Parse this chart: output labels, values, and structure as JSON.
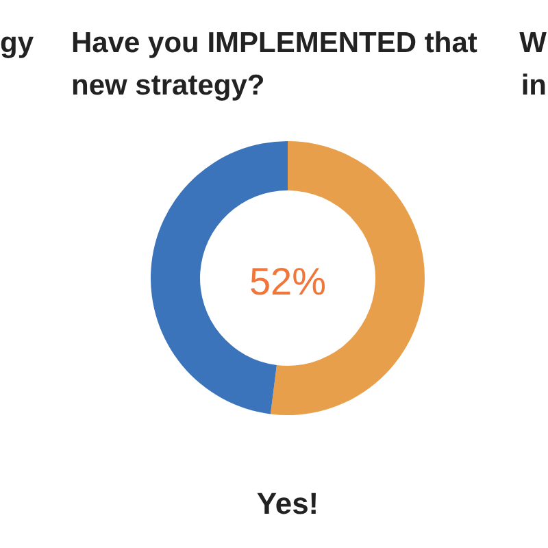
{
  "chart_data": {
    "type": "donut",
    "title": "Have you IMPLEMENTED that new strategy?",
    "categories": [
      "Yes!",
      null
    ],
    "values": [
      52,
      48
    ],
    "colors": [
      "#e89f4c",
      "#3b74ba"
    ],
    "value_labels": [
      "52%",
      null
    ],
    "annotations": [
      "gy",
      "W",
      "in"
    ]
  }
}
